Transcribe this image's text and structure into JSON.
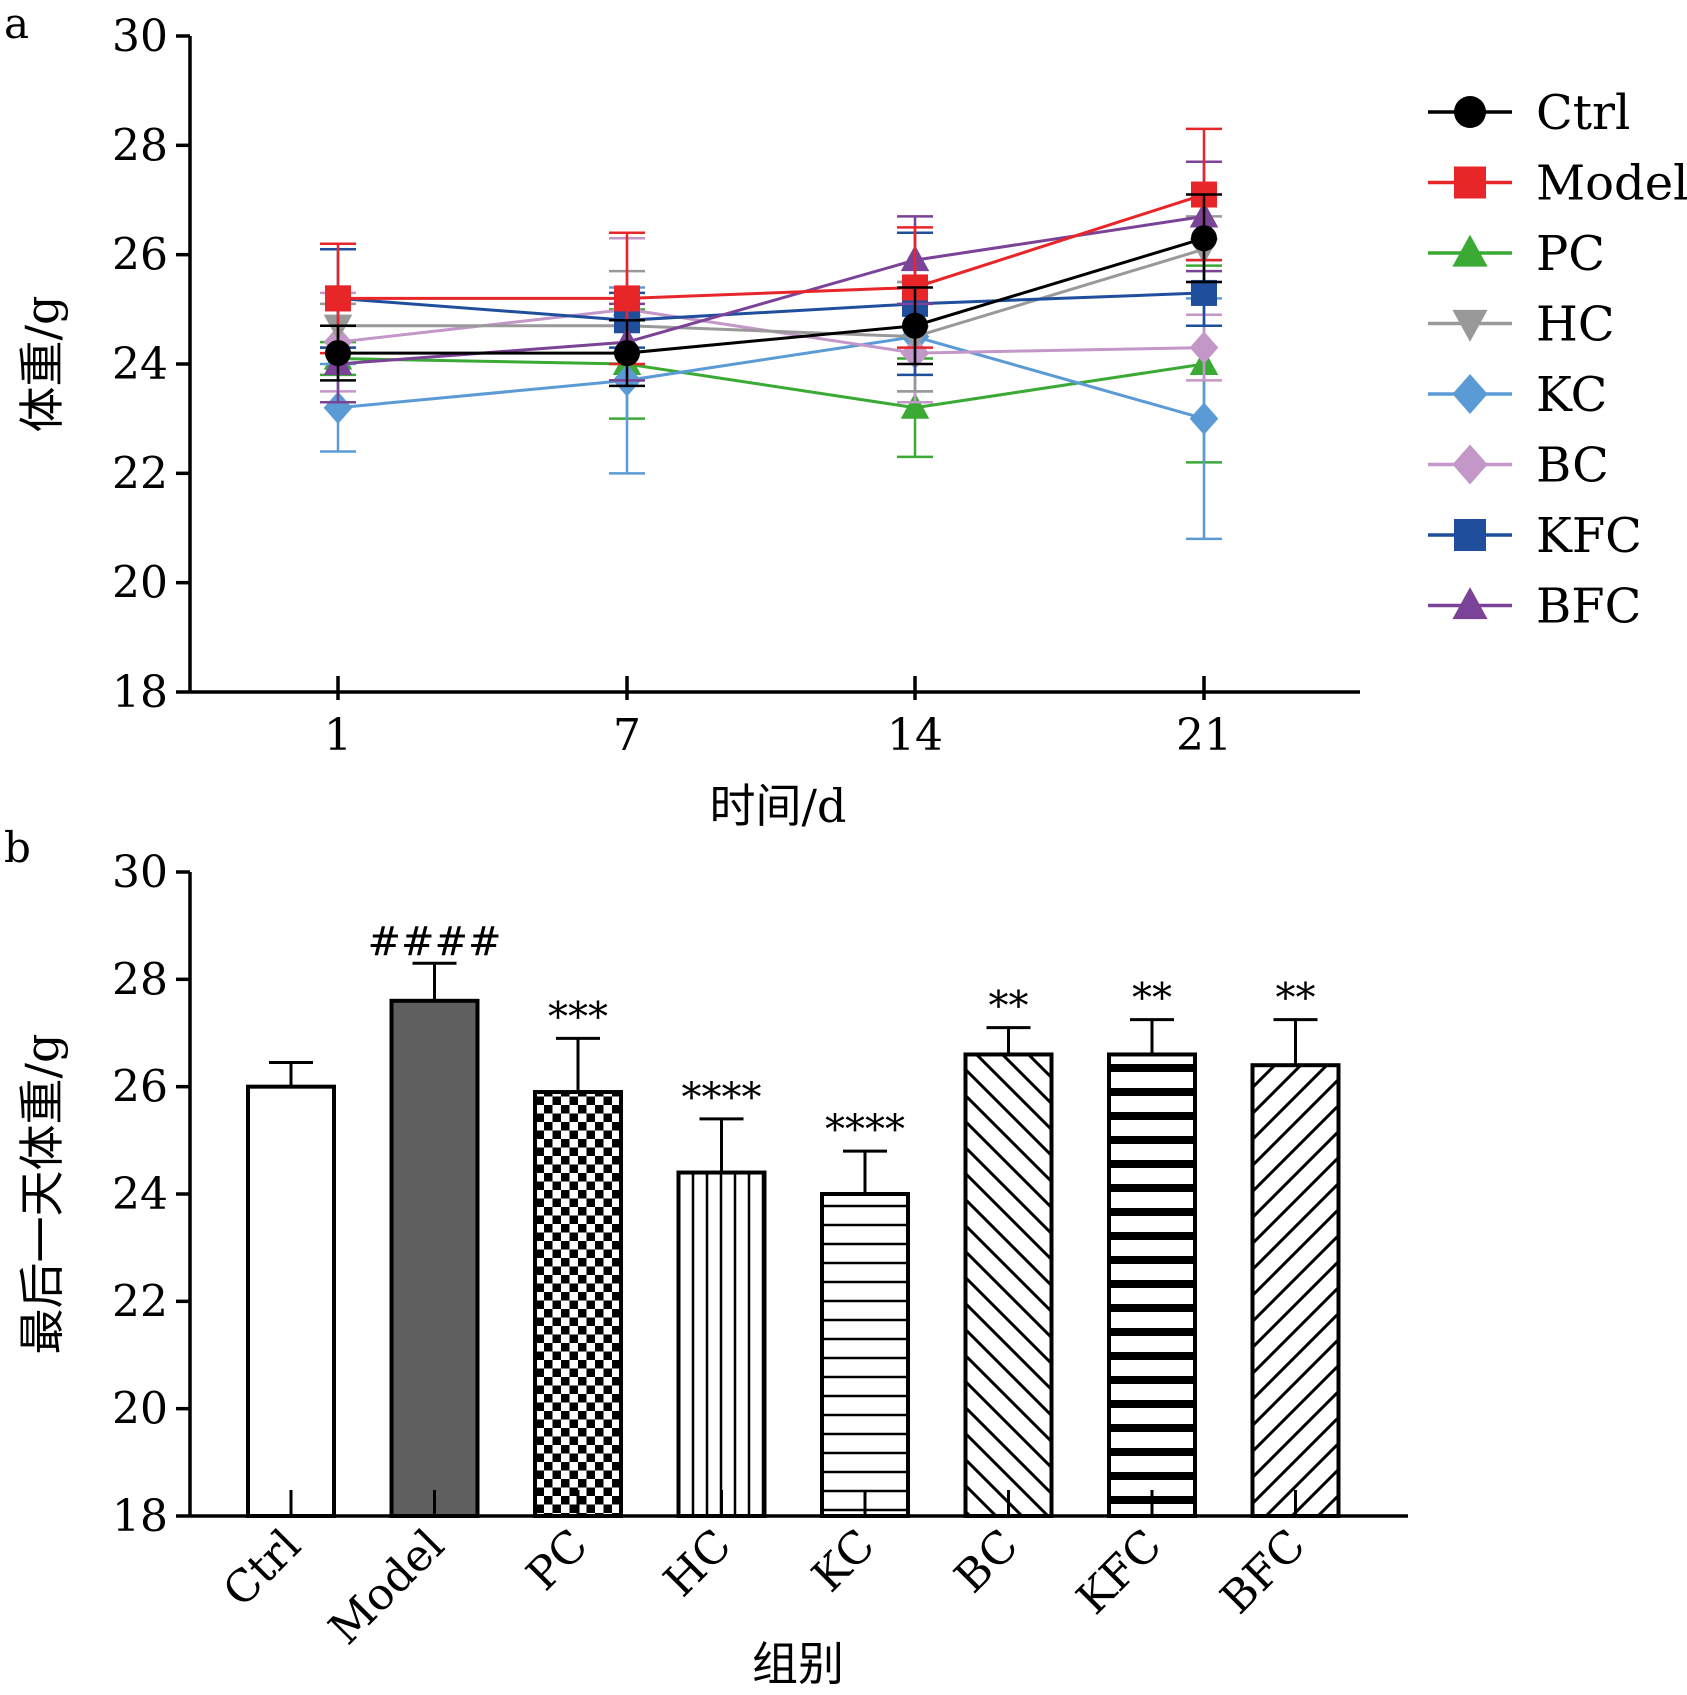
{
  "chart_data": [
    {
      "panel": "a",
      "type": "line",
      "xlabel": "时间/d",
      "ylabel": "体重/g",
      "x": [
        1,
        7,
        14,
        21
      ],
      "xticks": [
        "1",
        "7",
        "14",
        "21"
      ],
      "ylim": [
        18,
        30
      ],
      "yticks": [
        18,
        20,
        22,
        24,
        26,
        28,
        30
      ],
      "legend_position": "right",
      "series": [
        {
          "name": "Ctrl",
          "color": "#000000",
          "marker": "circle",
          "values": [
            24.2,
            24.2,
            24.7,
            26.3
          ],
          "errors": [
            0.5,
            0.6,
            0.7,
            0.8
          ]
        },
        {
          "name": "Model",
          "color": "#e8262a",
          "marker": "square",
          "values": [
            25.2,
            25.2,
            25.4,
            27.1
          ],
          "errors": [
            1.0,
            1.2,
            1.1,
            1.2
          ]
        },
        {
          "name": "PC",
          "color": "#3aaa35",
          "marker": "triangle",
          "values": [
            24.1,
            24.0,
            23.2,
            24.0
          ],
          "errors": [
            0.3,
            1.0,
            0.9,
            1.8
          ]
        },
        {
          "name": "HC",
          "color": "#999999",
          "marker": "triangle-down",
          "values": [
            24.7,
            24.7,
            24.5,
            26.1
          ],
          "errors": [
            0.4,
            1.0,
            1.0,
            0.6
          ]
        },
        {
          "name": "KC",
          "color": "#5b9bd5",
          "marker": "diamond",
          "values": [
            23.2,
            23.7,
            24.5,
            23.0
          ],
          "errors": [
            0.8,
            1.7,
            1.0,
            2.2
          ]
        },
        {
          "name": "BC",
          "color": "#c397c8",
          "marker": "diamond",
          "values": [
            24.4,
            25.0,
            24.2,
            24.3
          ],
          "errors": [
            0.9,
            1.3,
            0.9,
            0.6
          ]
        },
        {
          "name": "KFC",
          "color": "#1f4e9c",
          "marker": "square",
          "values": [
            25.2,
            24.8,
            25.1,
            25.3
          ],
          "errors": [
            0.9,
            0.5,
            1.3,
            0.6
          ]
        },
        {
          "name": "BFC",
          "color": "#7b4397",
          "marker": "triangle",
          "values": [
            24.0,
            24.4,
            25.9,
            26.7
          ],
          "errors": [
            0.7,
            0.7,
            0.8,
            1.0
          ]
        }
      ]
    },
    {
      "panel": "b",
      "type": "bar",
      "xlabel": "组别",
      "ylabel": "最后一天体重/g",
      "ylim": [
        18,
        30
      ],
      "yticks": [
        18,
        20,
        22,
        24,
        26,
        28,
        30
      ],
      "categories": [
        "Ctrl",
        "Model",
        "PC",
        "HC",
        "KC",
        "BC",
        "KFC",
        "BFC"
      ],
      "values": [
        26.0,
        27.6,
        25.9,
        24.4,
        24.0,
        26.6,
        26.6,
        26.4
      ],
      "errors": [
        0.45,
        0.7,
        1.0,
        1.0,
        0.8,
        0.5,
        0.65,
        0.85
      ],
      "annotations": [
        "",
        "####",
        "***",
        "****",
        "****",
        "**",
        "**",
        "**"
      ],
      "patterns": [
        "white",
        "solid-gray",
        "checker",
        "vertical",
        "horizontal",
        "diag-back",
        "horizontal-thick",
        "diag-fwd"
      ]
    }
  ]
}
